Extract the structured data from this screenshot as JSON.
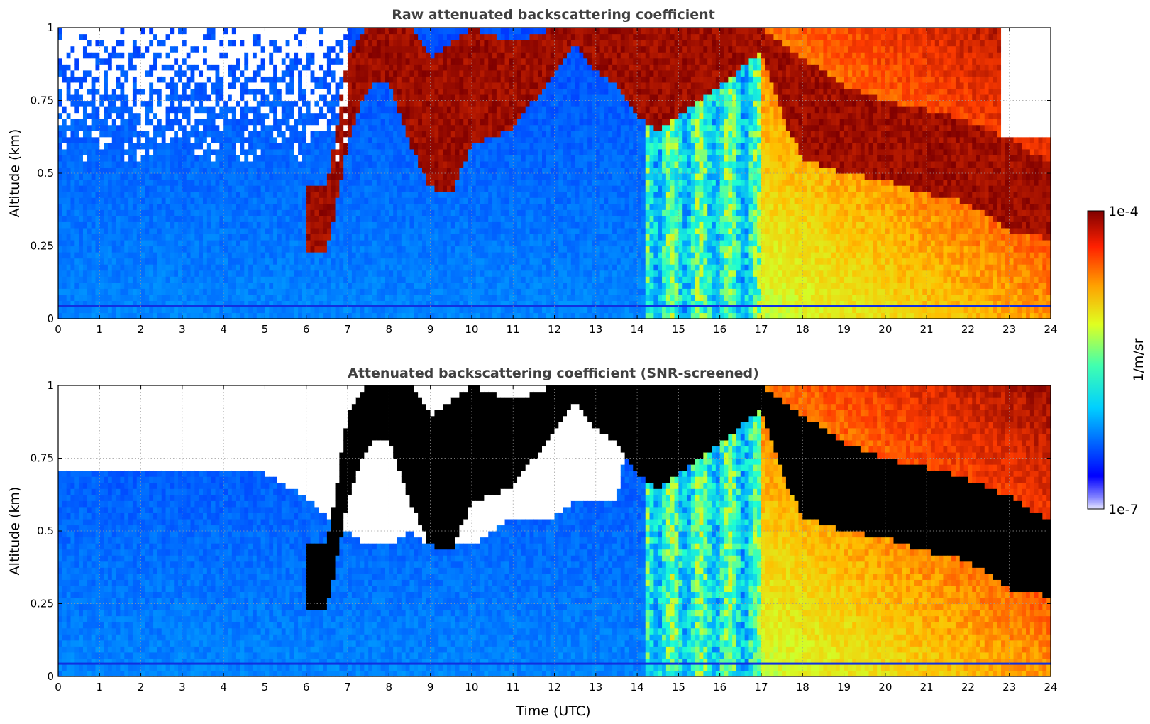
{
  "chart_data": [
    {
      "type": "heatmap",
      "title": "Raw attenuated backscattering coefficient",
      "xlabel": "",
      "ylabel": "Altitude (km)",
      "xlim": [
        0,
        24
      ],
      "ylim": [
        0,
        1
      ],
      "xticks": [
        "0",
        "1",
        "2",
        "3",
        "4",
        "5",
        "6",
        "7",
        "8",
        "9",
        "10",
        "11",
        "12",
        "13",
        "14",
        "15",
        "16",
        "17",
        "18",
        "19",
        "20",
        "21",
        "22",
        "23",
        "24"
      ],
      "yticks": [
        "0",
        "0.25",
        "0.5",
        "0.75",
        "1"
      ],
      "grid": true,
      "colorscale": "jet",
      "screened_color": "#ffffff",
      "time_utc": [
        0,
        1,
        2,
        3,
        4,
        5,
        6,
        6.5,
        7,
        7.5,
        8,
        8.5,
        9,
        9.5,
        10,
        11,
        12,
        12.5,
        13,
        13.5,
        14,
        14.5,
        15,
        16,
        17,
        17.5,
        18,
        19,
        20,
        21,
        22,
        23,
        23.8
      ],
      "cloud_base_km": [
        null,
        null,
        null,
        null,
        null,
        null,
        null,
        0.23,
        0.6,
        0.8,
        0.82,
        0.6,
        0.45,
        0.43,
        0.6,
        0.65,
        0.85,
        0.95,
        0.85,
        0.8,
        0.7,
        0.65,
        0.7,
        0.8,
        0.92,
        0.7,
        0.55,
        0.5,
        0.48,
        0.43,
        0.4,
        0.3,
        0.28
      ],
      "cloud_top_km": [
        null,
        null,
        null,
        null,
        null,
        null,
        null,
        0.45,
        0.9,
        1.0,
        1.0,
        1.0,
        0.9,
        0.95,
        1.0,
        0.95,
        1.0,
        1.0,
        1.0,
        1.0,
        1.0,
        1.0,
        1.0,
        1.0,
        1.0,
        0.95,
        0.9,
        0.8,
        0.75,
        0.72,
        0.68,
        0.62,
        0.55
      ]
    },
    {
      "type": "heatmap",
      "title": "Attenuated backscattering coefficient (SNR-screened)",
      "xlabel": "Time (UTC)",
      "ylabel": "Altitude (km)",
      "xlim": [
        0,
        24
      ],
      "ylim": [
        0,
        1
      ],
      "xticks": [
        "0",
        "1",
        "2",
        "3",
        "4",
        "5",
        "6",
        "7",
        "8",
        "9",
        "10",
        "11",
        "12",
        "13",
        "14",
        "15",
        "16",
        "17",
        "18",
        "19",
        "20",
        "21",
        "22",
        "23",
        "24"
      ],
      "yticks": [
        "0",
        "0.25",
        "0.5",
        "0.75",
        "1"
      ],
      "grid": true,
      "colorscale": "jet",
      "saturated_color": "#000000",
      "screened_color": "#ffffff",
      "screen_top_km": [
        0.7,
        0.7,
        0.7,
        0.7,
        0.7,
        0.7,
        0.62,
        0.55,
        0.5,
        0.45,
        0.45,
        0.5,
        0.45,
        0.45,
        0.45,
        0.55,
        0.55,
        0.6,
        0.6,
        0.6,
        1,
        1,
        1,
        1,
        1,
        1,
        1,
        1,
        1,
        1,
        1,
        1,
        1
      ]
    }
  ],
  "colorbar": {
    "label": "1/m/sr",
    "min_label": "1e-7",
    "max_label": "1e-4",
    "scale": "log"
  }
}
